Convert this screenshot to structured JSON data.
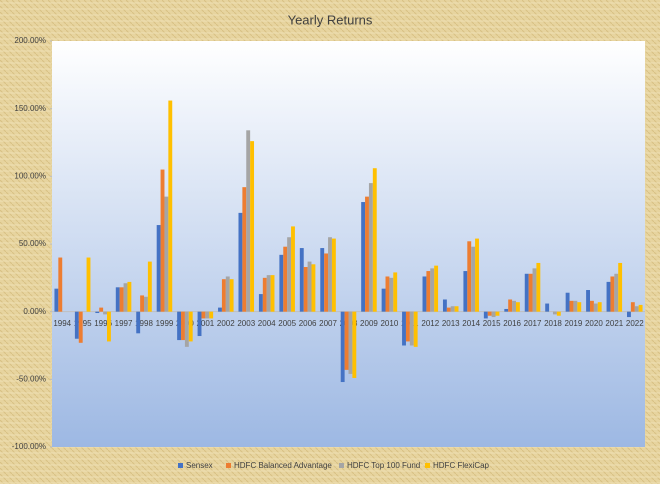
{
  "chart_data": {
    "type": "bar",
    "title": "Yearly Returns",
    "categories": [
      "1994",
      "1995",
      "1996",
      "1997",
      "1998",
      "1999",
      "2000",
      "2001",
      "2002",
      "2003",
      "2004",
      "2005",
      "2006",
      "2007",
      "2008",
      "2009",
      "2010",
      "2011",
      "2012",
      "2013",
      "2014",
      "2015",
      "2016",
      "2017",
      "2018",
      "2019",
      "2020",
      "2021",
      "2022"
    ],
    "series": [
      {
        "name": "Sensex",
        "color": "#4472c4",
        "values": [
          17,
          -20,
          -1,
          18,
          -16,
          64,
          -21,
          -18,
          3,
          73,
          13,
          42,
          47,
          47,
          -52,
          81,
          17,
          -25,
          26,
          9,
          30,
          -5,
          2,
          28,
          6,
          14,
          16,
          22,
          -4
        ]
      },
      {
        "name": "HDFC Balanced Advantage",
        "color": "#ed7d31",
        "values": [
          40,
          -23,
          3,
          18,
          12,
          105,
          -21,
          -5,
          24,
          92,
          25,
          48,
          33,
          43,
          -43,
          85,
          26,
          -22,
          30,
          3,
          52,
          -3,
          9,
          28,
          0,
          8,
          8,
          26,
          7
        ]
      },
      {
        "name": "HDFC Top 100 Fund",
        "color": "#a5a5a5",
        "values": [
          null,
          0,
          -2,
          21,
          11,
          85,
          -26,
          -5,
          26,
          134,
          27,
          55,
          37,
          55,
          -46,
          95,
          25,
          -25,
          32,
          4,
          48,
          -4,
          8,
          32,
          -2,
          8,
          6,
          28,
          4
        ]
      },
      {
        "name": "HDFC FlexiCap",
        "color": "#ffc000",
        "values": [
          null,
          40,
          -22,
          22,
          37,
          156,
          -22,
          -5,
          24,
          126,
          27,
          63,
          35,
          54,
          -49,
          106,
          29,
          -26,
          34,
          4,
          54,
          -3,
          7,
          36,
          -3,
          7,
          7,
          36,
          5
        ]
      }
    ],
    "ylim": [
      -100,
      200
    ],
    "yticks": [
      {
        "value": -100,
        "label": "-100.00%"
      },
      {
        "value": -50,
        "label": "-50.00%"
      },
      {
        "value": 0,
        "label": "0.00%"
      },
      {
        "value": 50,
        "label": "50.00%"
      },
      {
        "value": 100,
        "label": "100.00%"
      },
      {
        "value": 150,
        "label": "150.00%"
      },
      {
        "value": 200,
        "label": "200.00%"
      }
    ],
    "legend": "bottom"
  }
}
